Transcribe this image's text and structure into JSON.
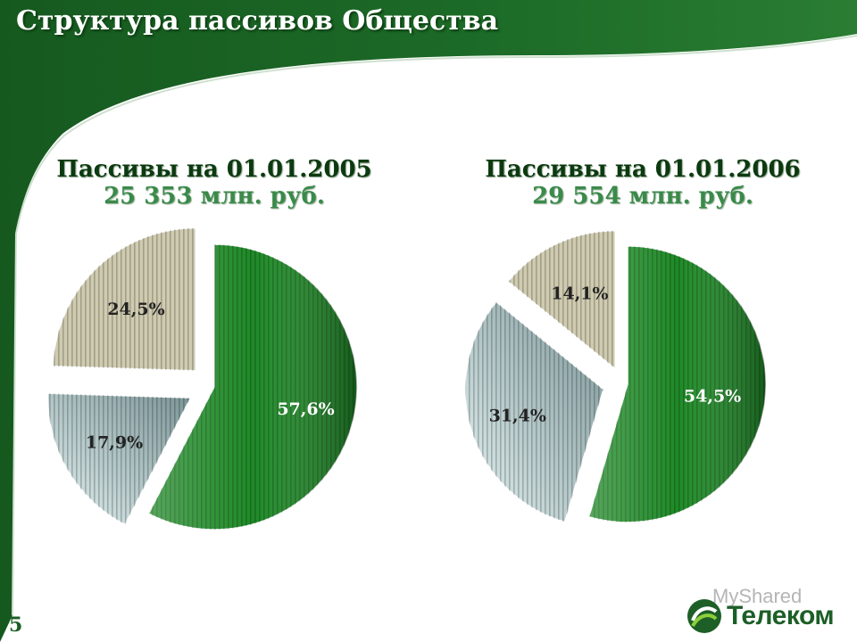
{
  "slide": {
    "title": "Структура пассивов Общества",
    "page_number": "5"
  },
  "colors": {
    "header_green": "#1f6e2a",
    "slice_green": "#1e8a26",
    "slice_blue_gray": "#a9c0c0",
    "slice_beige": "#cfcbb0"
  },
  "chart_data": [
    {
      "type": "pie",
      "title": "Пассивы на 01.01.2005",
      "subtitle": "25 353 млн. руб.",
      "labels": [
        "57,6%",
        "17,9%",
        "24,5%"
      ],
      "values": [
        57.6,
        17.9,
        24.5
      ],
      "colors": [
        "#1e8a26",
        "#a9c0c0",
        "#cfcbb0"
      ]
    },
    {
      "type": "pie",
      "title": "Пассивы на 01.01.2006",
      "subtitle": "29 554 млн. руб.",
      "labels": [
        "54,5%",
        "31,4%",
        "14,1%"
      ],
      "values": [
        54.5,
        31.4,
        14.1
      ],
      "colors": [
        "#1e8a26",
        "#a9c0c0",
        "#cfcbb0"
      ]
    }
  ],
  "logo": {
    "brand": "Телеком",
    "watermark": "MyShared",
    "icon": "telecom-logo-icon"
  }
}
